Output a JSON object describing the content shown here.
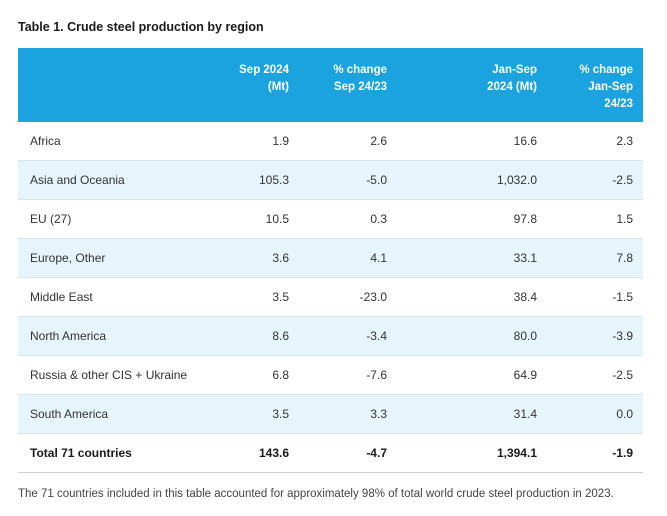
{
  "title": "Table 1. Crude steel production by region",
  "header": {
    "col0": "",
    "col1_line1": "Sep 2024",
    "col1_line2": "(Mt)",
    "col2_line1": "% change",
    "col2_line2": "Sep 24/23",
    "col3_line1": "Jan-Sep",
    "col3_line2": "2024 (Mt)",
    "col4_line1": "% change",
    "col4_line2": "Jan-Sep",
    "col4_line3": "24/23"
  },
  "rows": [
    {
      "region": "Africa",
      "sep": "1.9",
      "sep_chg": "2.6",
      "ytd": "16.6",
      "ytd_chg": "2.3"
    },
    {
      "region": "Asia and Oceania",
      "sep": "105.3",
      "sep_chg": "-5.0",
      "ytd": "1,032.0",
      "ytd_chg": "-2.5"
    },
    {
      "region": "EU (27)",
      "sep": "10.5",
      "sep_chg": "0.3",
      "ytd": "97.8",
      "ytd_chg": "1.5"
    },
    {
      "region": "Europe, Other",
      "sep": "3.6",
      "sep_chg": "4.1",
      "ytd": "33.1",
      "ytd_chg": "7.8"
    },
    {
      "region": "Middle East",
      "sep": "3.5",
      "sep_chg": "-23.0",
      "ytd": "38.4",
      "ytd_chg": "-1.5"
    },
    {
      "region": "North America",
      "sep": "8.6",
      "sep_chg": "-3.4",
      "ytd": "80.0",
      "ytd_chg": "-3.9"
    },
    {
      "region": "Russia & other CIS + Ukraine",
      "sep": "6.8",
      "sep_chg": "-7.6",
      "ytd": "64.9",
      "ytd_chg": "-2.5"
    },
    {
      "region": "South America",
      "sep": "3.5",
      "sep_chg": "3.3",
      "ytd": "31.4",
      "ytd_chg": "0.0"
    }
  ],
  "total": {
    "region": "Total 71 countries",
    "sep": "143.6",
    "sep_chg": "-4.7",
    "ytd": "1,394.1",
    "ytd_chg": "-1.9"
  },
  "footnote": "The 71 countries included in this table accounted for approximately 98% of total world crude steel production in 2023.",
  "colors": {
    "header_bg": "#1aa3de",
    "alt_row_bg": "#e6f4fb"
  }
}
